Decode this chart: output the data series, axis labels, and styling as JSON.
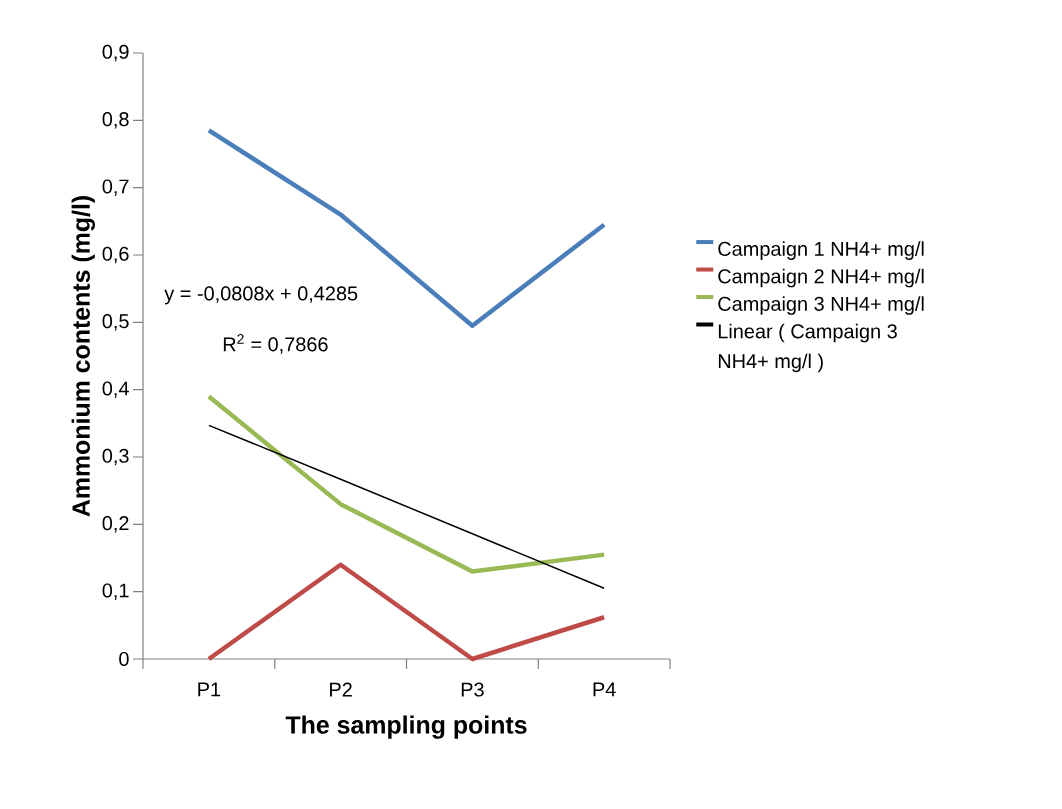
{
  "chart_data": {
    "type": "line",
    "xlabel": "The sampling points",
    "ylabel": "Ammonium contents (mg/l)",
    "categories": [
      "P1",
      "P2",
      "P3",
      "P4"
    ],
    "series": [
      {
        "name": "Campaign 1 NH4+ mg/l",
        "color": "#4a7ebb",
        "values": [
          0.785,
          0.66,
          0.495,
          0.645
        ]
      },
      {
        "name": "Campaign 2 NH4+ mg/l",
        "color": "#be4b48",
        "values": [
          0,
          0.14,
          0,
          0.062
        ]
      },
      {
        "name": "Campaign 3 NH4+ mg/l",
        "color": "#98b954",
        "values": [
          0.39,
          0.23,
          0.13,
          0.155
        ]
      },
      {
        "name": "Linear ( Campaign 3 NH4+ mg/l )",
        "color": "#000000",
        "values": [
          0.347,
          0.267,
          0.186,
          0.105
        ]
      }
    ],
    "ylim": [
      0,
      0.9
    ],
    "yticks": [
      0,
      {
        "value": 0.1,
        "label": "0,1"
      },
      {
        "value": 0.2,
        "label": "0,2"
      },
      {
        "value": 0.3,
        "label": "0,3"
      },
      {
        "value": 0.4,
        "label": "0,4"
      },
      {
        "value": 0.5,
        "label": "0,5"
      },
      {
        "value": 0.6,
        "label": "0,6"
      },
      {
        "value": 0.7,
        "label": "0,7"
      },
      {
        "value": 0.8,
        "label": "0,8"
      },
      {
        "value": 0.9,
        "label": "0,9"
      }
    ],
    "legend": "right",
    "marker": "none",
    "line_style": "solid",
    "annotations": [
      "y = -0,0808x + 0,4285",
      "R$^{2}$ = 0,7866"
    ]
  }
}
